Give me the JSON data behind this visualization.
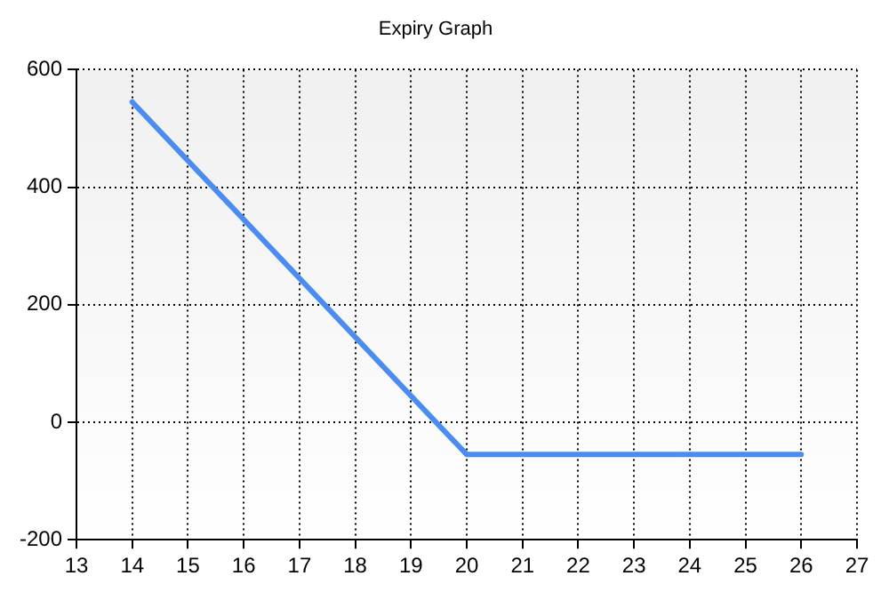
{
  "chart_data": {
    "type": "line",
    "title": "Expiry Graph",
    "x": [
      14,
      20,
      26
    ],
    "series": [
      {
        "color": "#4a8cf0",
        "values": [
          545,
          -55,
          -55
        ]
      }
    ],
    "xlim": [
      13,
      27
    ],
    "xticks": [
      13,
      14,
      15,
      16,
      17,
      18,
      19,
      20,
      21,
      22,
      23,
      24,
      25,
      26,
      27
    ],
    "ylim": [
      -200,
      600
    ],
    "yticks": [
      -200,
      0,
      200,
      400,
      600
    ],
    "grid": true,
    "legend": false,
    "marker": "none",
    "line_style": "solid"
  }
}
